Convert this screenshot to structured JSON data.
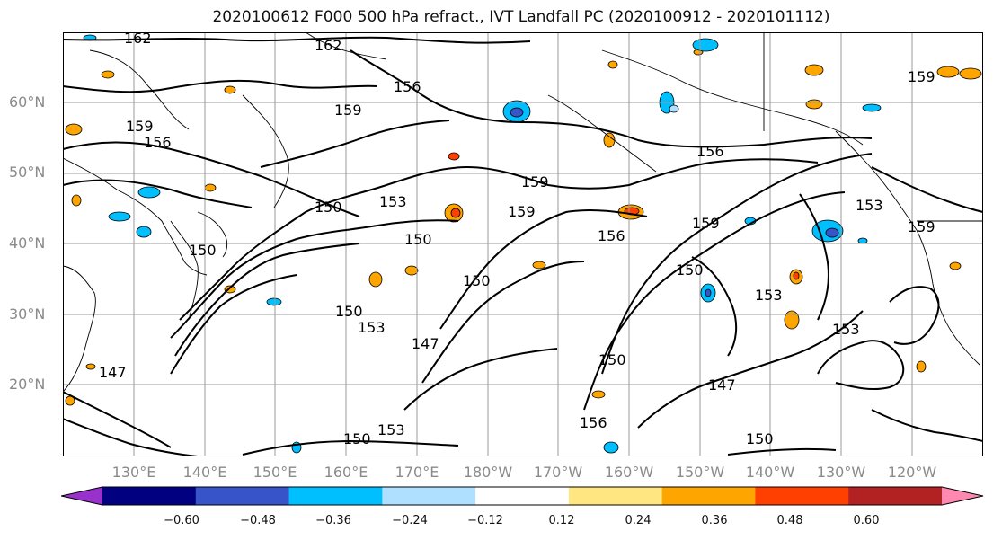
{
  "title": "2020100612 F000 500 hPa refract., IVT Landfall PC (2020100912 - 2020101112)",
  "map": {
    "lat_labels": [
      "60°N",
      "50°N",
      "40°N",
      "30°N",
      "20°N"
    ],
    "lon_labels": [
      "130°E",
      "140°E",
      "150°E",
      "160°E",
      "170°E",
      "180°W",
      "170°W",
      "160°W",
      "150°W",
      "140°W",
      "130°W",
      "120°W"
    ],
    "contour_labels": [
      "162",
      "162",
      "159",
      "156",
      "159",
      "159",
      "156",
      "159",
      "156",
      "150",
      "153",
      "159",
      "150",
      "150",
      "150",
      "150",
      "153",
      "147",
      "150",
      "147",
      "150",
      "156",
      "153",
      "150",
      "153",
      "159",
      "153",
      "147",
      "150",
      "159",
      "156",
      "153"
    ],
    "colors": {
      "coastline": "#000000",
      "grid": "#9a9a9a",
      "contour": "#000000"
    }
  },
  "colorbar": {
    "colors": [
      "#9932cc",
      "#000080",
      "#3755c8",
      "#00bfff",
      "#b0e0ff",
      "#ffffff",
      "#ffe680",
      "#ffa500",
      "#ff4000",
      "#b22222",
      "#ff88b0"
    ],
    "tick_labels": [
      "−0.60",
      "−0.48",
      "−0.36",
      "−0.24",
      "−0.12",
      "0.12",
      "0.24",
      "0.36",
      "0.48",
      "0.60"
    ]
  }
}
